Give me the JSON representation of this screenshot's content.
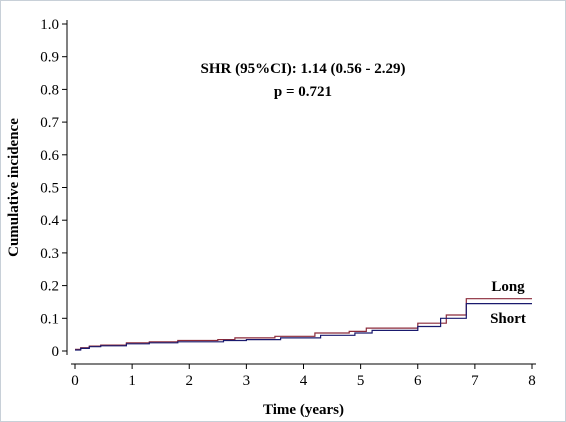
{
  "chart_data": {
    "type": "line",
    "title": "",
    "xlabel": "Time (years)",
    "ylabel": "Cumulative incidence",
    "xlim": [
      0,
      8
    ],
    "ylim": [
      0,
      1.0
    ],
    "x_ticks": [
      "0",
      "1",
      "2",
      "3",
      "4",
      "5",
      "6",
      "7",
      "8"
    ],
    "y_ticks": [
      "0",
      "0.1",
      "0.2",
      "0.3",
      "0.4",
      "0.5",
      "0.6",
      "0.7",
      "0.8",
      "0.9",
      "1.0"
    ],
    "grid": false,
    "step": true,
    "annotations": [
      "SHR (95%CI): 1.14 (0.56 - 2.29)",
      "p = 0.721"
    ],
    "series": [
      {
        "name": "Long",
        "color": "#8b2a3a",
        "x": [
          0,
          0.1,
          0.25,
          0.45,
          0.9,
          1.3,
          1.8,
          2.5,
          2.8,
          3.5,
          4.2,
          4.8,
          5.1,
          6.0,
          6.5,
          6.85,
          8.0
        ],
        "y": [
          0.005,
          0.01,
          0.015,
          0.018,
          0.025,
          0.028,
          0.032,
          0.035,
          0.04,
          0.045,
          0.055,
          0.06,
          0.07,
          0.085,
          0.11,
          0.16,
          0.16
        ]
      },
      {
        "name": "Short",
        "color": "#1a1a6e",
        "x": [
          0,
          0.1,
          0.25,
          0.45,
          0.9,
          1.3,
          1.8,
          2.6,
          3.0,
          3.6,
          4.3,
          4.9,
          5.2,
          6.0,
          6.4,
          6.85,
          8.0
        ],
        "y": [
          0.003,
          0.008,
          0.013,
          0.016,
          0.022,
          0.025,
          0.028,
          0.032,
          0.035,
          0.04,
          0.048,
          0.055,
          0.063,
          0.075,
          0.1,
          0.145,
          0.145
        ]
      }
    ]
  }
}
